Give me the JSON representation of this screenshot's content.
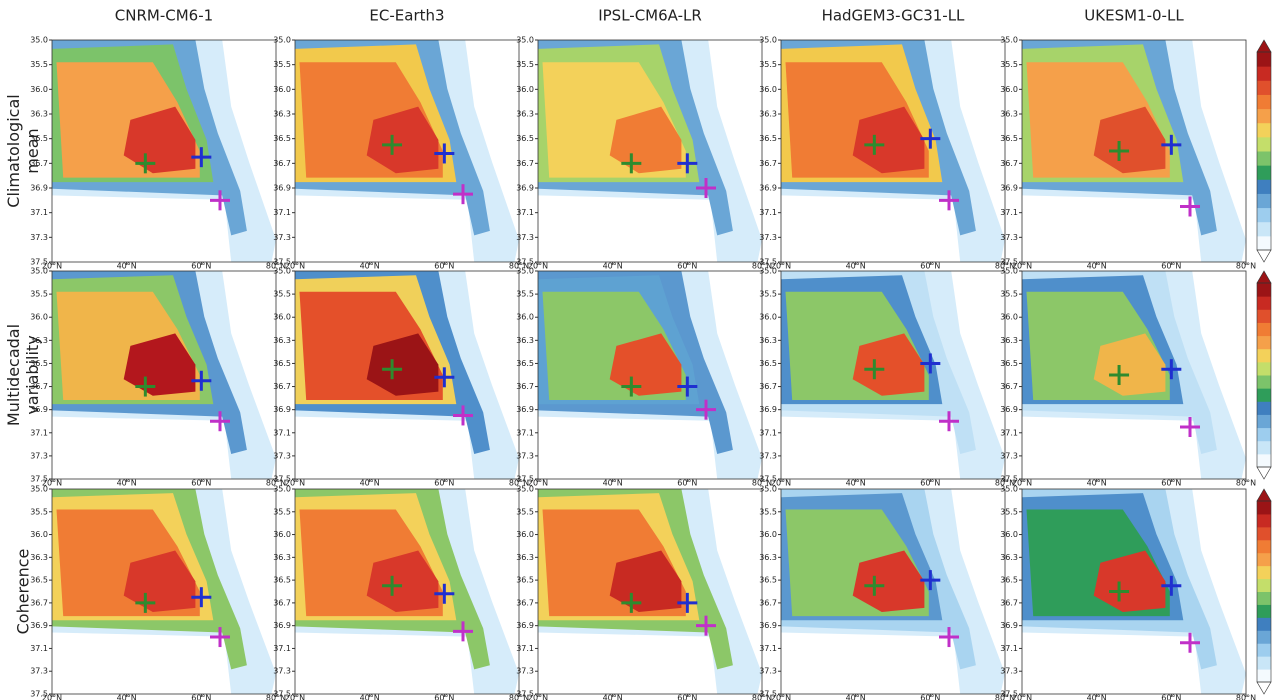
{
  "chart_data": {
    "type": "contour-grid",
    "columns": [
      "CNRM-CM6-1",
      "EC-Earth3",
      "IPSL-CM6A-LR",
      "HadGEM3-GC31-LL",
      "UKESM1-0-LL"
    ],
    "rows": [
      [
        "Climatological",
        "mean"
      ],
      [
        "Multidecadal",
        "variability"
      ],
      [
        "Coherence"
      ]
    ],
    "xlim": [
      20,
      80
    ],
    "xticks": [
      {
        "value": 20,
        "label": "20°N"
      },
      {
        "value": 40,
        "label": "40°N"
      },
      {
        "value": 60,
        "label": "60°N"
      },
      {
        "value": 80,
        "label": "80°N"
      }
    ],
    "ylim": [
      35,
      37.5
    ],
    "yticks": [
      {
        "value": 35,
        "label": "35.0"
      },
      35.5,
      {
        "value": 36,
        "label": "36.0"
      },
      36.3,
      36.5,
      36.7,
      36.9,
      37.1,
      37.3,
      37.5
    ],
    "series": [
      {
        "color": "#2e8b2e",
        "x": [
          45,
          46,
          45,
          45,
          46
        ],
        "values": [
          36.7,
          36.55,
          36.7,
          36.55,
          36.6
        ]
      },
      {
        "color": "#1f2fd0",
        "x": [
          60,
          60,
          60,
          60,
          60
        ],
        "values": [
          36.65,
          36.62,
          36.7,
          36.5,
          36.55
        ]
      },
      {
        "color": "#c030c8",
        "x": [
          65,
          65,
          65,
          65,
          65
        ],
        "values": [
          37.0,
          36.95,
          36.9,
          37.0,
          37.05
        ]
      }
    ]
  }
}
